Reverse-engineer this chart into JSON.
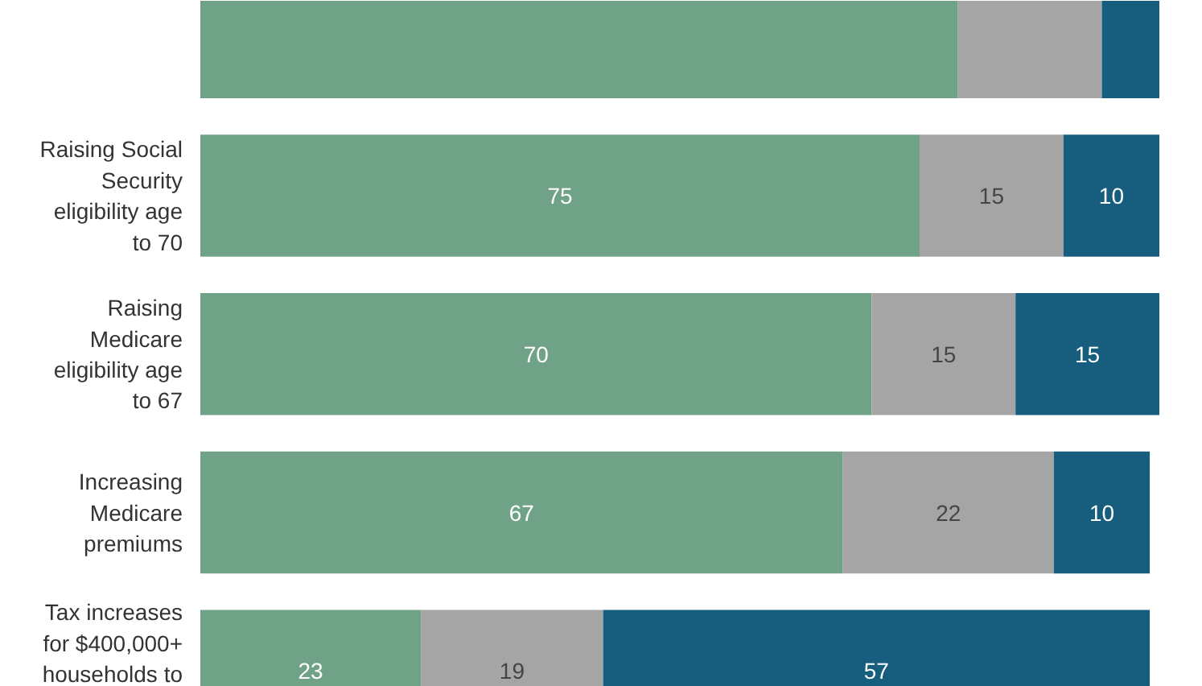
{
  "chart_data": {
    "type": "bar",
    "orientation": "horizontal",
    "stacked": true,
    "categories": [
      null,
      "Raising Social Security eligibility age to 70",
      "Raising Medicare eligibility age to 67",
      "Increasing Medicare premiums",
      "Tax increases for $400,000+ households to"
    ],
    "series": [
      {
        "color": "#6fa287",
        "values": [
          79,
          75,
          70,
          67,
          23
        ],
        "value_labels": [
          null,
          "75",
          "70",
          "67",
          "23"
        ]
      },
      {
        "color": "#a5a5a5",
        "values": [
          15,
          15,
          15,
          22,
          19
        ],
        "value_labels": [
          null,
          "15",
          "15",
          "22",
          "19"
        ]
      },
      {
        "color": "#175e7e",
        "values": [
          6,
          10,
          15,
          10,
          57
        ],
        "value_labels": [
          null,
          "10",
          "15",
          "10",
          "57"
        ]
      }
    ],
    "xlim": [
      0,
      100
    ],
    "tick_labels": "y"
  }
}
